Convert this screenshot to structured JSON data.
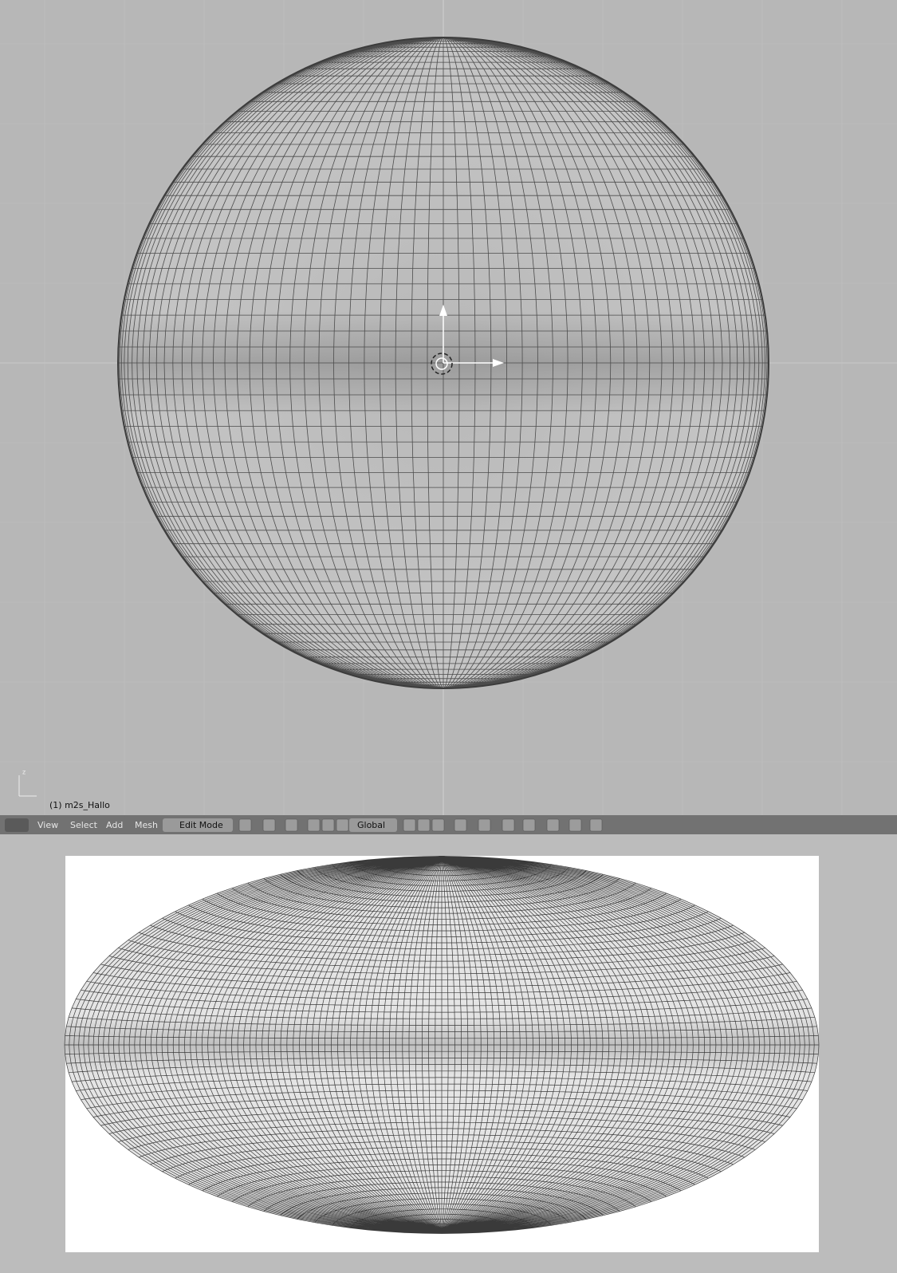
{
  "viewport": {
    "axis_label": "z",
    "object_label": "(1) m2s_Hallo"
  },
  "header": {
    "menus": [
      "View",
      "Select",
      "Add",
      "Mesh"
    ],
    "mode": "Edit Mode",
    "orientation": "Global"
  }
}
